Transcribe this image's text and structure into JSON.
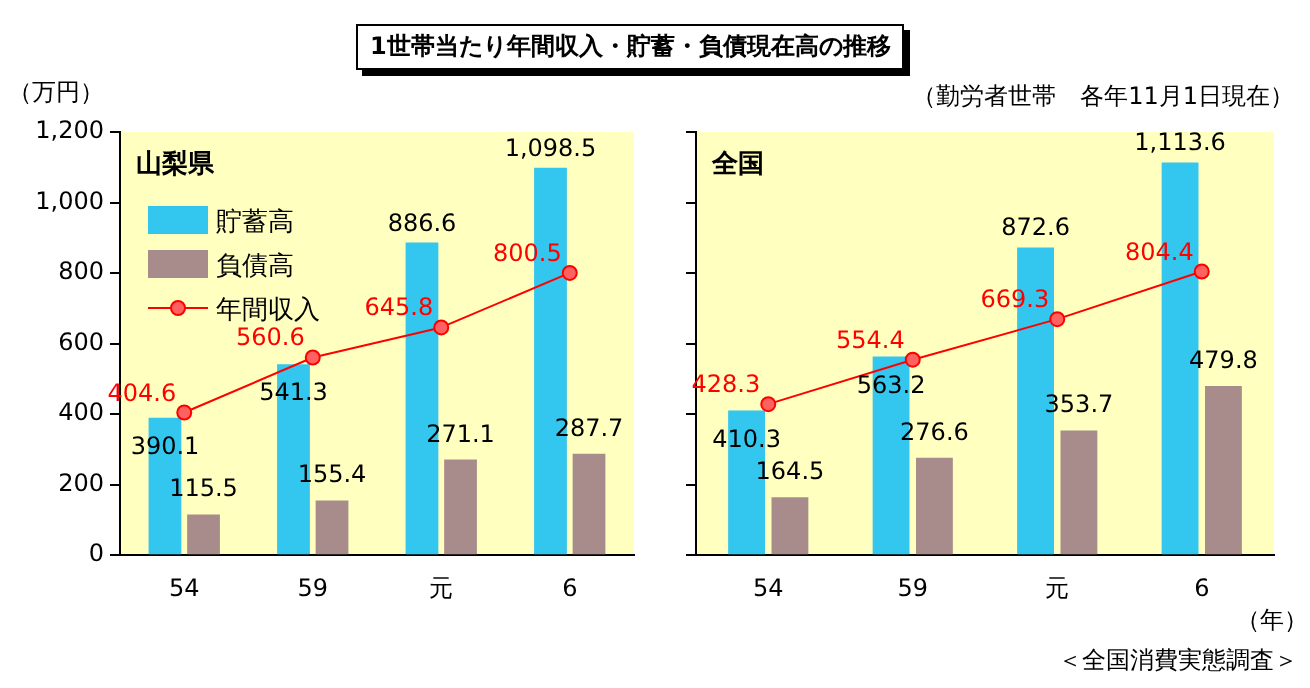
{
  "chart_data": [
    {
      "type": "bar",
      "title": "山梨県",
      "ylabel": "（万円）",
      "annotations": [
        "1世帯当たり年間収入・貯蓄・負債現在高の推移"
      ],
      "categories": [
        "54",
        "59",
        "元",
        "6"
      ],
      "series": [
        {
          "name": "貯蓄高",
          "color": "#33c6ee",
          "values": [
            390.1,
            541.3,
            886.6,
            1098.5
          ],
          "value_labels": [
            "390.1",
            "541.3",
            "886.6",
            "1,098.5"
          ]
        },
        {
          "name": "負債高",
          "color": "#a88c8c",
          "values": [
            115.5,
            155.4,
            271.1,
            287.7
          ],
          "value_labels": [
            "115.5",
            "155.4",
            "271.1",
            "287.7"
          ]
        },
        {
          "name": "年間収入",
          "type": "line",
          "color": "#ff0000",
          "values": [
            404.6,
            560.6,
            645.8,
            800.5
          ],
          "value_labels": [
            "404.6",
            "560.6",
            "645.8",
            "800.5"
          ]
        }
      ],
      "ylim": [
        0,
        1200
      ],
      "yticks": [
        0,
        200,
        400,
        600,
        800,
        {
          "value": 1000,
          "label": "1,000"
        },
        {
          "value": 1200,
          "label": "1,200"
        }
      ],
      "grid": false,
      "legend": "top left",
      "marker": "circle"
    },
    {
      "type": "bar",
      "title": "全国",
      "xlabel": "（年）",
      "annotations": [
        "（勤労者世帯　各年11月1日現在）",
        "＜全国消費実態調査＞"
      ],
      "categories": [
        "54",
        "59",
        "元",
        "6"
      ],
      "series": [
        {
          "color": "#33c6ee",
          "values": [
            410.3,
            563.2,
            872.6,
            1113.6
          ],
          "value_labels": [
            "410.3",
            "563.2",
            "872.6",
            "1,113.6"
          ]
        },
        {
          "color": "#a88c8c",
          "values": [
            164.5,
            276.6,
            353.7,
            479.8
          ],
          "value_labels": [
            "164.5",
            "276.6",
            "353.7",
            "479.8"
          ]
        },
        {
          "type": "line",
          "color": "#ff0000",
          "values": [
            428.3,
            554.4,
            669.3,
            804.4
          ],
          "value_labels": [
            "428.3",
            "554.4",
            "669.3",
            "804.4"
          ]
        }
      ],
      "ylim": [
        0,
        1200
      ],
      "yticks": [
        0,
        200,
        400,
        600,
        800,
        1000,
        1200
      ],
      "grid": false,
      "legend": false,
      "tick_labels": "x",
      "marker": "circle"
    }
  ]
}
